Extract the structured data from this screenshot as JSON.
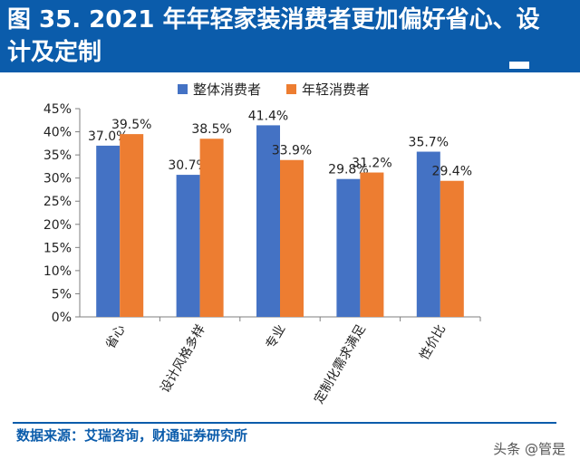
{
  "header": {
    "title": "图 35. 2021 年年轻家装消费者更加偏好省心、设计及定制"
  },
  "footer": {
    "source": "数据来源：艾瑞咨询，财通证券研究所",
    "watermark": "头条 @管是"
  },
  "colors": {
    "brand": "#0b5cab",
    "series_blue": "#4472c4",
    "series_orange": "#ed7d31"
  },
  "chart_data": {
    "type": "bar",
    "categories": [
      "省心",
      "设计风格多样",
      "专业",
      "定制化需求满足",
      "性价比"
    ],
    "series": [
      {
        "name": "整体消费者",
        "values": [
          37.0,
          30.7,
          41.4,
          29.8,
          35.7
        ],
        "labels": [
          "37.0%",
          "30.7%",
          "41.4%",
          "29.8%",
          "35.7%"
        ]
      },
      {
        "name": "年轻消费者",
        "values": [
          39.5,
          38.5,
          33.9,
          31.2,
          29.4
        ],
        "labels": [
          "39.5%",
          "38.5%",
          "33.9%",
          "31.2%",
          "29.4%"
        ]
      }
    ],
    "ylim": [
      0,
      45
    ],
    "yticks": [
      0,
      5,
      10,
      15,
      20,
      25,
      30,
      35,
      40,
      45
    ],
    "ytick_labels": [
      "0%",
      "5%",
      "10%",
      "15%",
      "20%",
      "25%",
      "30%",
      "35%",
      "40%",
      "45%"
    ],
    "grid": false,
    "legend": "top"
  }
}
